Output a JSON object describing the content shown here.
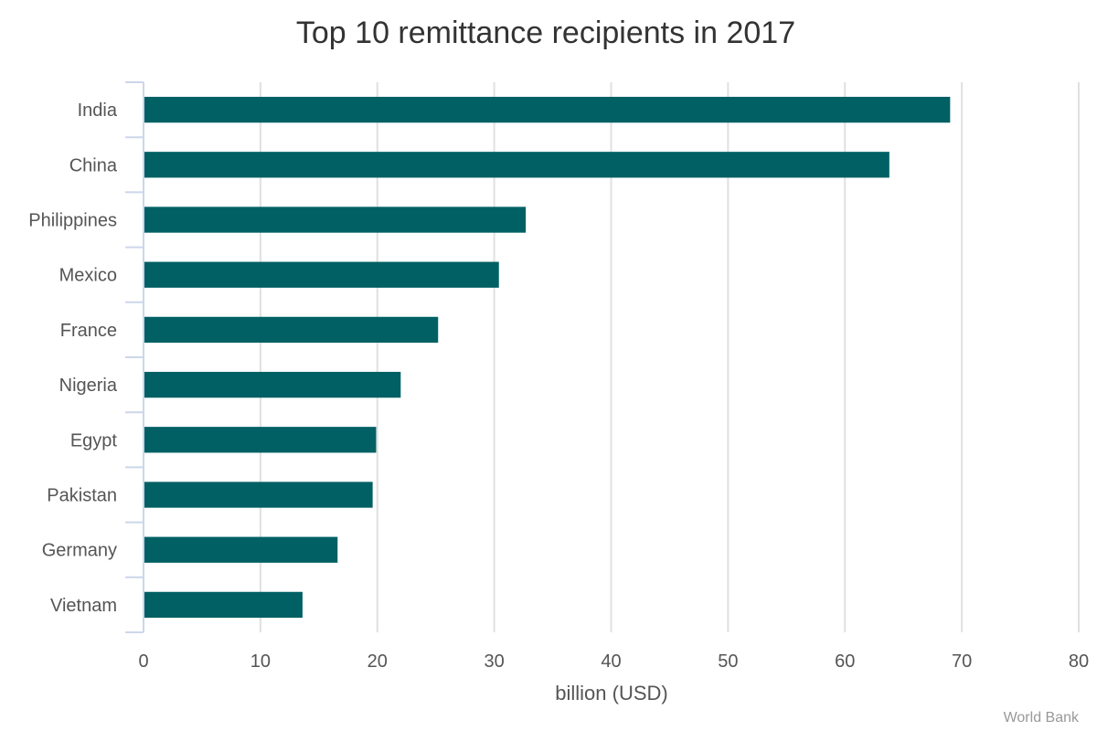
{
  "chart_data": {
    "type": "bar",
    "orientation": "horizontal",
    "title": "Top 10 remittance recipients in 2017",
    "xlabel": "billion (USD)",
    "ylabel": "",
    "categories": [
      "India",
      "China",
      "Philippines",
      "Mexico",
      "France",
      "Nigeria",
      "Egypt",
      "Pakistan",
      "Germany",
      "Vietnam"
    ],
    "values": [
      69.0,
      63.8,
      32.7,
      30.4,
      25.2,
      22.0,
      19.9,
      19.6,
      16.6,
      13.6
    ],
    "xlim": [
      0,
      80
    ],
    "xticks": [
      0,
      10,
      20,
      30,
      40,
      50,
      60,
      70,
      80
    ],
    "grid": true,
    "bar_color": "#006064",
    "credit": "World Bank"
  }
}
